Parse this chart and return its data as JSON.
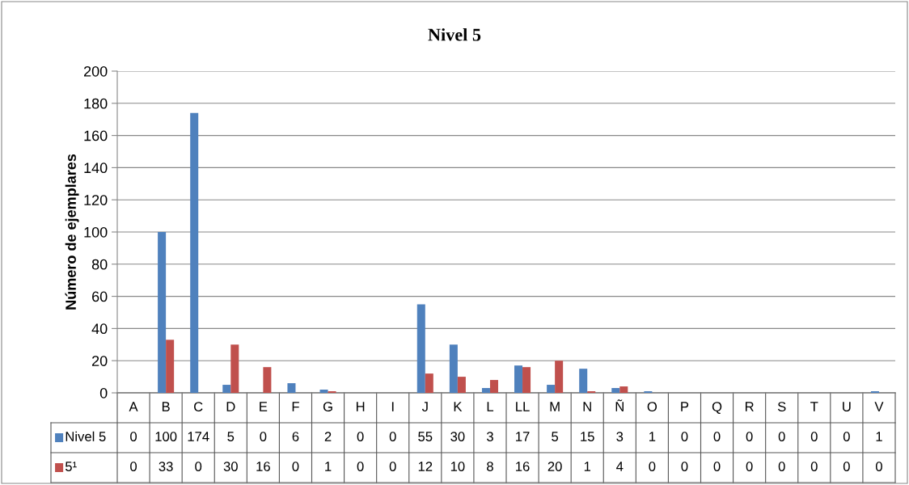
{
  "chart_data": {
    "type": "bar",
    "title": "Nivel 5",
    "ylabel": "Número de ejemplares",
    "categories": [
      "A",
      "B",
      "C",
      "D",
      "E",
      "F",
      "G",
      "H",
      "I",
      "J",
      "K",
      "L",
      "LL",
      "M",
      "N",
      "Ñ",
      "O",
      "P",
      "Q",
      "R",
      "S",
      "T",
      "U",
      "V"
    ],
    "series": [
      {
        "name": "Nivel 5",
        "color": "#4f81bd",
        "values": [
          0,
          100,
          174,
          5,
          0,
          6,
          2,
          0,
          0,
          55,
          30,
          3,
          17,
          5,
          15,
          3,
          1,
          0,
          0,
          0,
          0,
          0,
          0,
          1
        ]
      },
      {
        "name": "5¹",
        "color": "#c0504d",
        "values": [
          0,
          33,
          0,
          30,
          16,
          0,
          1,
          0,
          0,
          12,
          10,
          8,
          16,
          20,
          1,
          4,
          0,
          0,
          0,
          0,
          0,
          0,
          0,
          0
        ]
      }
    ],
    "ylim": [
      0,
      200
    ],
    "yticks": [
      0,
      20,
      40,
      60,
      80,
      100,
      120,
      140,
      160,
      180,
      200
    ],
    "grid": "y",
    "legend": "bottom",
    "data_labels": true
  }
}
